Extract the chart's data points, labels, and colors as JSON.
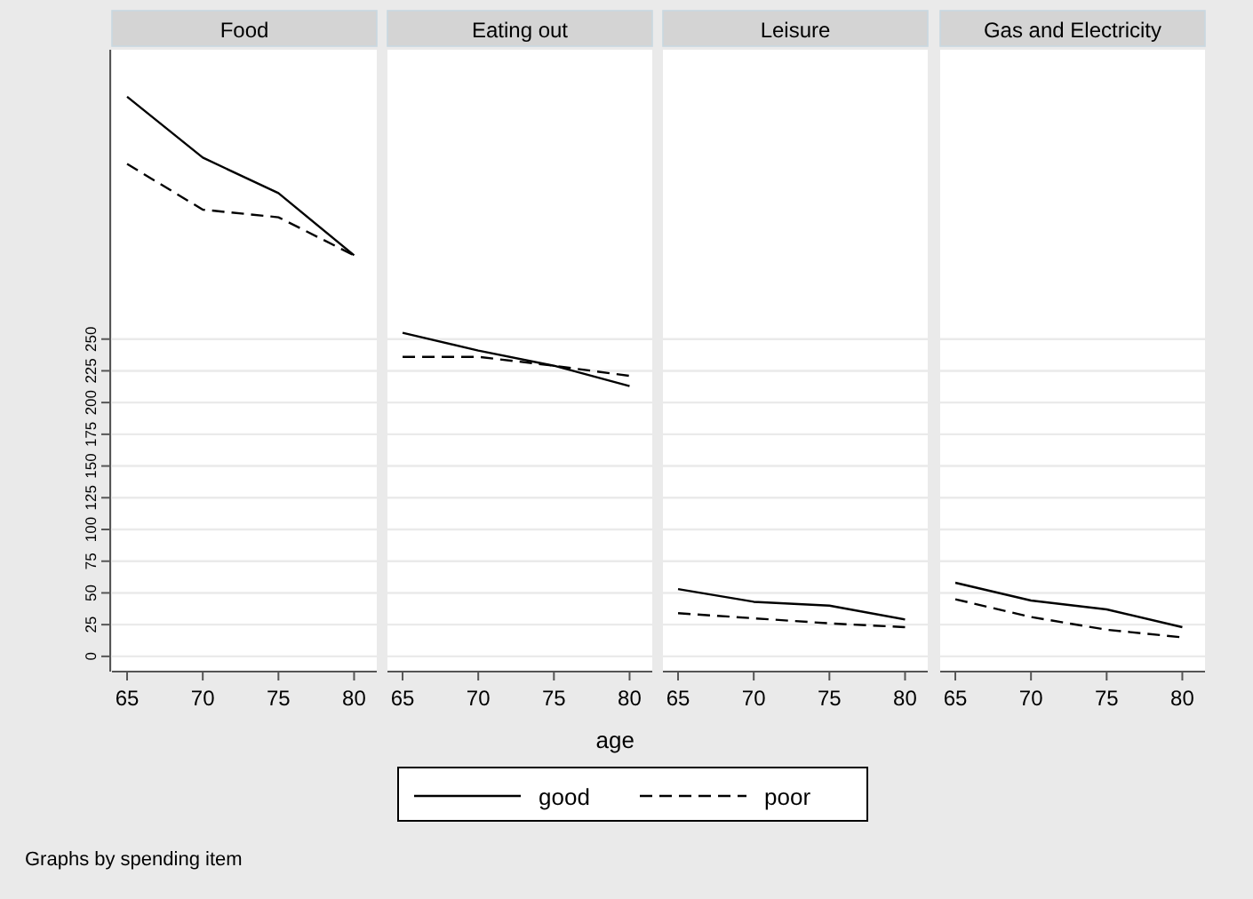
{
  "chart_data": [
    {
      "type": "line",
      "title": "Food",
      "x": [
        65,
        70,
        75,
        80
      ],
      "xlim": [
        64,
        81.5
      ],
      "xticks": [
        65,
        70,
        75,
        80
      ],
      "ylim": [
        -12,
        478
      ],
      "yticks": [
        0,
        25,
        50,
        75,
        100,
        125,
        150,
        175,
        200,
        225,
        250
      ],
      "grid": "y",
      "legend": "bottom",
      "annotations": [
        "Graphs by spending item"
      ],
      "series": [
        {
          "name": "good",
          "color": "#000000",
          "line_style": "solid",
          "values": [
            441,
            393,
            365,
            316
          ]
        },
        {
          "name": "poor",
          "color": "#000000",
          "line_style": "dashed",
          "values": [
            388,
            352,
            346,
            316
          ]
        }
      ]
    },
    {
      "type": "line",
      "title": "Eating out",
      "x": [
        65,
        70,
        75,
        80
      ],
      "xlim": [
        64,
        81.5
      ],
      "xticks": [
        65,
        70,
        75,
        80
      ],
      "ylim": [
        -12,
        478
      ],
      "yticks": [
        0,
        25,
        50,
        75,
        100,
        125,
        150,
        175,
        200,
        225,
        250
      ],
      "grid": "y",
      "tick_labels": "x",
      "xlabel": "age",
      "series": [
        {
          "color": "#000000",
          "line_style": "solid",
          "values": [
            255,
            241,
            229,
            213
          ]
        },
        {
          "color": "#000000",
          "line_style": "dashed",
          "values": [
            236,
            236,
            229,
            221
          ]
        }
      ]
    },
    {
      "type": "line",
      "title": "Leisure",
      "x": [
        65,
        70,
        75,
        80
      ],
      "xlim": [
        64,
        81.5
      ],
      "xticks": [
        65,
        70,
        75,
        80
      ],
      "ylim": [
        -12,
        478
      ],
      "yticks": [
        0,
        25,
        50,
        75,
        100,
        125,
        150,
        175,
        200,
        225,
        250
      ],
      "grid": "y",
      "tick_labels": "x",
      "series": [
        {
          "color": "#000000",
          "line_style": "solid",
          "values": [
            53,
            43,
            40,
            29
          ]
        },
        {
          "color": "#000000",
          "line_style": "dashed",
          "values": [
            34,
            30,
            26,
            23
          ]
        }
      ]
    },
    {
      "type": "line",
      "title": "Gas and Electricity",
      "x": [
        65,
        70,
        75,
        80
      ],
      "xlim": [
        64,
        81.5
      ],
      "xticks": [
        65,
        70,
        75,
        80
      ],
      "ylim": [
        -12,
        478
      ],
      "yticks": [
        0,
        25,
        50,
        75,
        100,
        125,
        150,
        175,
        200,
        225,
        250
      ],
      "grid": "y",
      "tick_labels": "x",
      "series": [
        {
          "color": "#000000",
          "line_style": "solid",
          "values": [
            58,
            44,
            37,
            23
          ]
        },
        {
          "color": "#000000",
          "line_style": "dashed",
          "values": [
            45,
            31,
            21,
            15
          ]
        }
      ]
    }
  ]
}
